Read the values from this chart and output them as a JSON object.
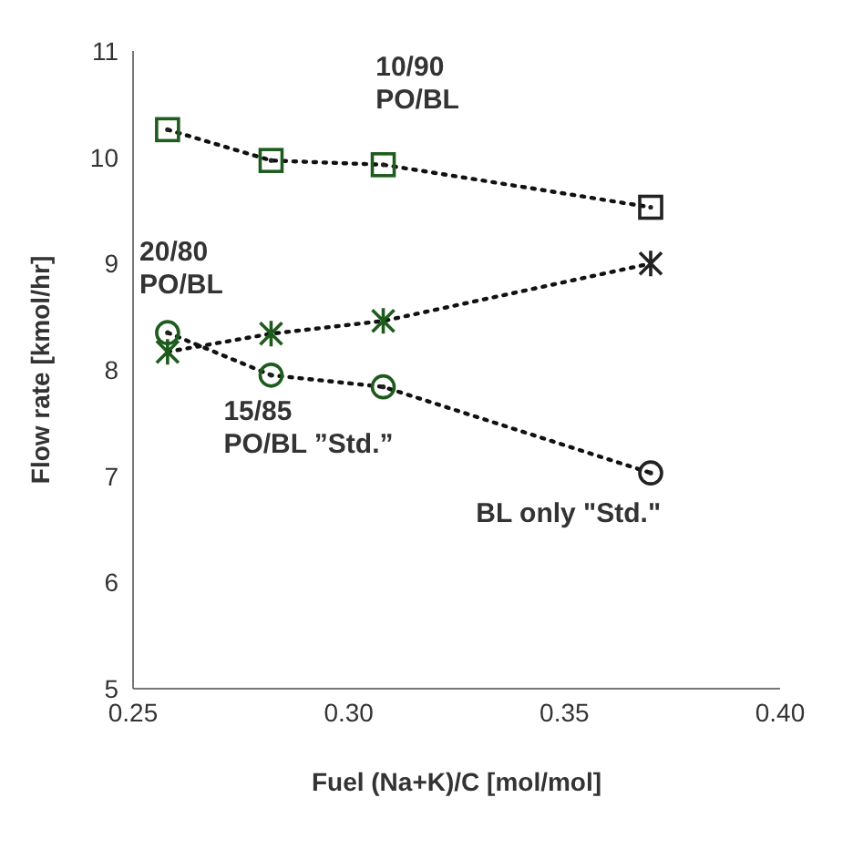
{
  "chart_data": {
    "type": "line",
    "xlabel": "Fuel (Na+K)/C [mol/mol]",
    "ylabel": "Flow rate [kmol/hr]",
    "x": [
      0.258,
      0.282,
      0.308,
      0.37
    ],
    "series": [
      {
        "marker": "square",
        "colors": [
          "#1e5c1e",
          "#1e5c1e",
          "#1e5c1e",
          "#222222"
        ],
        "values": [
          10.26,
          9.97,
          9.93,
          9.53
        ]
      },
      {
        "marker": "cross",
        "colors": [
          "#1e5c1e",
          "#1e5c1e",
          "#1e5c1e",
          "#222222"
        ],
        "values": [
          8.17,
          8.34,
          8.46,
          9.0
        ]
      },
      {
        "marker": "circle",
        "colors": [
          "#1e5c1e",
          "#1e5c1e",
          "#1e5c1e",
          "#222222"
        ],
        "values": [
          8.35,
          7.95,
          7.84,
          7.03
        ]
      }
    ],
    "line_style": "dotted",
    "xlim": [
      0.25,
      0.4
    ],
    "xticks": [
      {
        "value": 0.25,
        "label": "0.25"
      },
      {
        "value": 0.3,
        "label": "0.30"
      },
      {
        "value": 0.35,
        "label": "0.35"
      },
      {
        "value": 0.4,
        "label": "0.40"
      }
    ],
    "ylim": [
      5,
      11
    ],
    "yticks": [
      5,
      6,
      7,
      8,
      9,
      10,
      11
    ],
    "grid": false,
    "legend": false,
    "annotations": [
      "10/90\nPO/BL",
      "20/80\nPO/BL",
      "15/85\nPO/BL ”Std.”",
      "BL only \"Std.\""
    ]
  }
}
